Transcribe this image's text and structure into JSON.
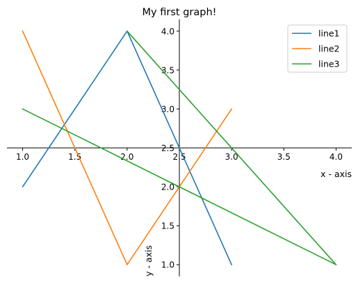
{
  "chart_data": {
    "type": "line",
    "title": "My first graph!",
    "xlabel": "x - axis",
    "ylabel": "y - axis",
    "xlim": [
      0.85,
      4.15
    ],
    "ylim": [
      0.85,
      4.15
    ],
    "xticks": [
      1.0,
      1.5,
      2.0,
      2.5,
      3.0,
      3.5,
      4.0
    ],
    "yticks": [
      1.0,
      1.5,
      2.0,
      2.5,
      3.0,
      3.5,
      4.0
    ],
    "xtick_labels": [
      "1.0",
      "1.5",
      "2.0",
      "2.5",
      "3.0",
      "3.5",
      "4.0"
    ],
    "ytick_labels": [
      "1.0",
      "1.5",
      "2.0",
      "2.5",
      "3.0",
      "3.5",
      "4.0"
    ],
    "spines": "centered at (2.5, 2.5)",
    "grid": false,
    "legend": "top-right",
    "series": [
      {
        "name": "line1",
        "color": "#1f77b4",
        "x": [
          1,
          2,
          3
        ],
        "y": [
          2,
          4,
          1
        ]
      },
      {
        "name": "line2",
        "color": "#ff7f0e",
        "x": [
          1,
          2,
          3
        ],
        "y": [
          4,
          1,
          3
        ]
      },
      {
        "name": "line3",
        "color": "#2ca02c",
        "x": [
          1,
          4,
          2,
          4
        ],
        "y": [
          3,
          1,
          4,
          1
        ]
      }
    ]
  }
}
